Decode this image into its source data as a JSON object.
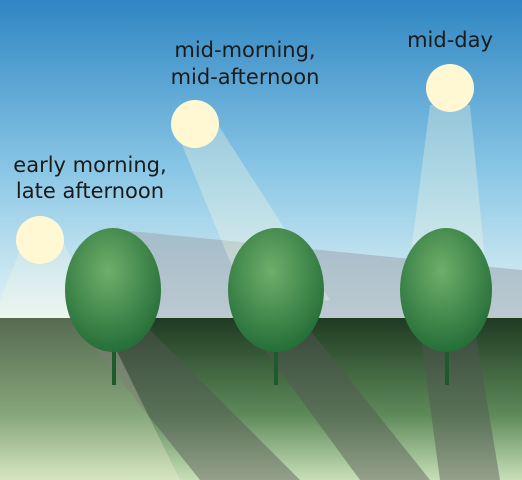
{
  "labels": [
    {
      "lines": [
        "early morning,",
        "late afternoon"
      ]
    },
    {
      "lines": [
        "mid-morning,",
        "mid-afternoon"
      ]
    },
    {
      "lines": [
        "mid-day"
      ]
    }
  ]
}
